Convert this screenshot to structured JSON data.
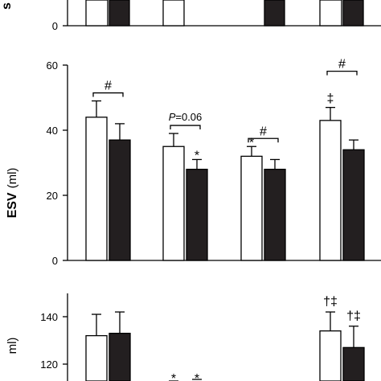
{
  "chart_data": [
    {
      "type": "bar",
      "panel": "top",
      "ylabel": "",
      "ylim": [
        0,
        60
      ],
      "yticks": [
        0
      ],
      "ylabel_fragment": "s",
      "series": [
        {
          "style": "open",
          "values": [
            null,
            null,
            null,
            null
          ]
        },
        {
          "style": "filled",
          "values": [
            null,
            null,
            null,
            null
          ]
        }
      ]
    },
    {
      "type": "bar",
      "panel": "middle",
      "ylabel": "ESV",
      "yunit": "(ml)",
      "ylim": [
        0,
        60
      ],
      "yticks": [
        0,
        20,
        40,
        60
      ],
      "series": [
        {
          "style": "open",
          "values": [
            44,
            35,
            32,
            43
          ],
          "errors": [
            5,
            4,
            3,
            4
          ]
        },
        {
          "style": "filled",
          "values": [
            37,
            28,
            28,
            34
          ],
          "errors": [
            5,
            3,
            3,
            3
          ]
        }
      ],
      "annotations": [
        {
          "group": 0,
          "text": "#",
          "type": "bracket"
        },
        {
          "group": 1,
          "text": "P=0.06",
          "italic_part": "P",
          "rest": "=0.06",
          "type": "bracket"
        },
        {
          "group": 1,
          "series": 1,
          "text": "*"
        },
        {
          "group": 2,
          "text": "#",
          "type": "bracket"
        },
        {
          "group": 2,
          "series": 0,
          "text": "*"
        },
        {
          "group": 3,
          "text": "#",
          "type": "bracket"
        },
        {
          "group": 3,
          "series": 0,
          "text": "‡"
        }
      ]
    },
    {
      "type": "bar",
      "panel": "bottom",
      "ylabel": "",
      "yunit": "ml)",
      "ylim": [
        110,
        150
      ],
      "yticks": [
        120,
        140
      ],
      "series": [
        {
          "style": "open",
          "values": [
            132,
            null,
            null,
            134
          ],
          "errors": [
            9,
            null,
            null,
            8
          ]
        },
        {
          "style": "filled",
          "values": [
            133,
            null,
            null,
            127
          ],
          "errors": [
            9,
            null,
            null,
            9
          ]
        }
      ],
      "annotations": [
        {
          "group": 1,
          "series": 0,
          "text": "*"
        },
        {
          "group": 1,
          "series": 1,
          "text": "*"
        },
        {
          "group": 3,
          "series": 0,
          "text": "†‡"
        },
        {
          "group": 3,
          "series": 1,
          "text": "†‡"
        }
      ]
    }
  ]
}
